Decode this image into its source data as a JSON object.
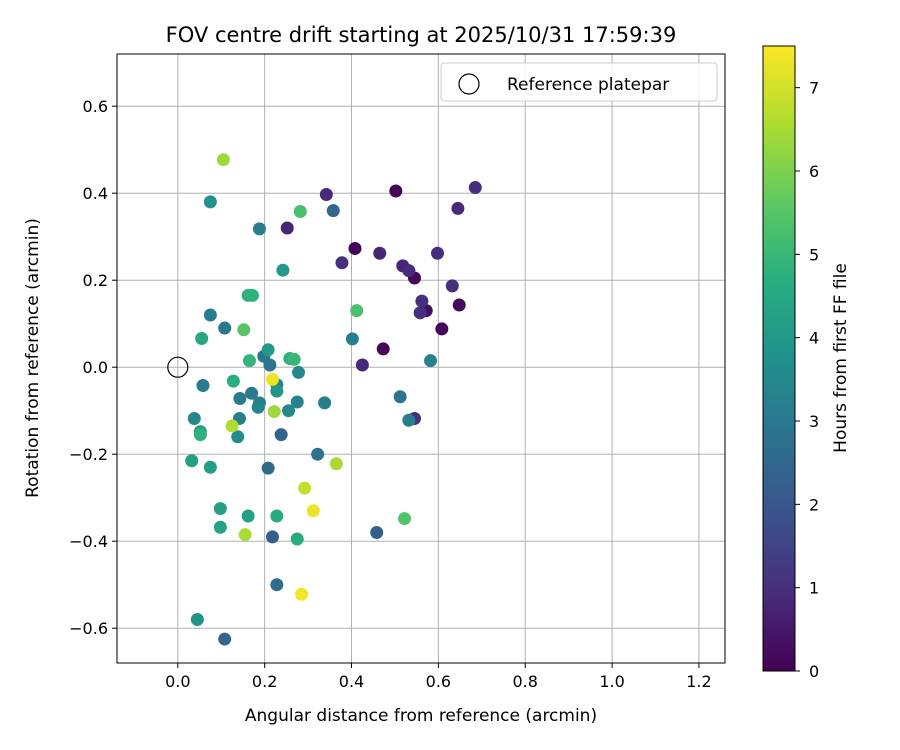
{
  "chart_data": {
    "type": "scatter",
    "title": "FOV centre drift starting at 2025/10/31 17:59:39",
    "xlabel": "Angular distance from reference (arcmin)",
    "ylabel": "Rotation from reference (arcmin)",
    "xlim": [
      -0.14,
      1.26
    ],
    "ylim": [
      -0.68,
      0.72
    ],
    "xticks": [
      0.0,
      0.2,
      0.4,
      0.6,
      0.8,
      1.0,
      1.2
    ],
    "xtick_labels": [
      "0.0",
      "0.2",
      "0.4",
      "0.6",
      "0.8",
      "1.0",
      "1.2"
    ],
    "yticks": [
      -0.6,
      -0.4,
      -0.2,
      0.0,
      0.2,
      0.4,
      0.6
    ],
    "ytick_labels": [
      "−0.6",
      "−0.4",
      "−0.2",
      "0.0",
      "0.2",
      "0.4",
      "0.6"
    ],
    "grid": true,
    "colormap": "viridis",
    "colorbar": {
      "label": "Hours from first FF file",
      "range": [
        0,
        7.5
      ],
      "ticks": [
        0,
        1,
        2,
        3,
        4,
        5,
        6,
        7
      ],
      "tick_labels": [
        "0",
        "1",
        "2",
        "3",
        "4",
        "5",
        "6",
        "7"
      ]
    },
    "legend": {
      "entries": [
        "Reference platepar"
      ],
      "location": "upper right"
    },
    "reference_point": {
      "x": 0.0,
      "y": 0.0,
      "name": "Reference platepar"
    },
    "points": [
      {
        "x": 0.502,
        "y": 0.405,
        "h": 0.05
      },
      {
        "x": 0.408,
        "y": 0.273,
        "h": 0.1
      },
      {
        "x": 0.545,
        "y": 0.205,
        "h": 0.15
      },
      {
        "x": 0.648,
        "y": 0.143,
        "h": 0.2
      },
      {
        "x": 0.608,
        "y": 0.088,
        "h": 0.1
      },
      {
        "x": 0.473,
        "y": 0.042,
        "h": 0.1
      },
      {
        "x": 0.572,
        "y": 0.13,
        "h": 0.3
      },
      {
        "x": 0.685,
        "y": 0.413,
        "h": 1.0
      },
      {
        "x": 0.645,
        "y": 0.365,
        "h": 0.9
      },
      {
        "x": 0.342,
        "y": 0.397,
        "h": 0.9
      },
      {
        "x": 0.252,
        "y": 0.32,
        "h": 0.8
      },
      {
        "x": 0.465,
        "y": 0.262,
        "h": 0.8
      },
      {
        "x": 0.518,
        "y": 0.233,
        "h": 0.8
      },
      {
        "x": 0.598,
        "y": 0.262,
        "h": 1.0
      },
      {
        "x": 0.378,
        "y": 0.24,
        "h": 1.0
      },
      {
        "x": 0.532,
        "y": 0.222,
        "h": 0.9
      },
      {
        "x": 0.632,
        "y": 0.187,
        "h": 1.0
      },
      {
        "x": 0.562,
        "y": 0.152,
        "h": 1.0
      },
      {
        "x": 0.558,
        "y": 0.125,
        "h": 1.0
      },
      {
        "x": 0.425,
        "y": 0.005,
        "h": 0.9
      },
      {
        "x": 0.545,
        "y": -0.118,
        "h": 1.0
      },
      {
        "x": 0.358,
        "y": 0.36,
        "h": 2.5
      },
      {
        "x": 0.458,
        "y": -0.38,
        "h": 2.3
      },
      {
        "x": 0.218,
        "y": -0.39,
        "h": 2.2
      },
      {
        "x": 0.238,
        "y": -0.155,
        "h": 2.4
      },
      {
        "x": 0.208,
        "y": -0.232,
        "h": 2.6
      },
      {
        "x": 0.228,
        "y": -0.5,
        "h": 2.6
      },
      {
        "x": 0.108,
        "y": -0.625,
        "h": 2.5
      },
      {
        "x": 0.322,
        "y": -0.2,
        "h": 2.8
      },
      {
        "x": 0.512,
        "y": -0.068,
        "h": 2.9
      },
      {
        "x": 0.532,
        "y": -0.122,
        "h": 3.2
      },
      {
        "x": 0.582,
        "y": 0.015,
        "h": 3.3
      },
      {
        "x": 0.188,
        "y": 0.318,
        "h": 3.2
      },
      {
        "x": 0.108,
        "y": 0.09,
        "h": 3.0
      },
      {
        "x": 0.075,
        "y": 0.12,
        "h": 3.1
      },
      {
        "x": 0.058,
        "y": -0.042,
        "h": 3.1
      },
      {
        "x": 0.198,
        "y": 0.025,
        "h": 3.0
      },
      {
        "x": 0.212,
        "y": 0.005,
        "h": 2.9
      },
      {
        "x": 0.143,
        "y": -0.072,
        "h": 3.1
      },
      {
        "x": 0.17,
        "y": -0.06,
        "h": 3.0
      },
      {
        "x": 0.188,
        "y": -0.082,
        "h": 3.2
      },
      {
        "x": 0.275,
        "y": -0.08,
        "h": 3.3
      },
      {
        "x": 0.338,
        "y": -0.082,
        "h": 3.2
      },
      {
        "x": 0.402,
        "y": 0.065,
        "h": 3.2
      },
      {
        "x": 0.142,
        "y": -0.118,
        "h": 3.2
      },
      {
        "x": 0.185,
        "y": -0.092,
        "h": 3.4
      },
      {
        "x": 0.228,
        "y": -0.04,
        "h": 3.3
      },
      {
        "x": 0.255,
        "y": -0.1,
        "h": 3.5
      },
      {
        "x": 0.278,
        "y": -0.012,
        "h": 3.5
      },
      {
        "x": 0.138,
        "y": -0.16,
        "h": 3.6
      },
      {
        "x": 0.038,
        "y": -0.118,
        "h": 3.4
      },
      {
        "x": 0.075,
        "y": 0.38,
        "h": 3.8
      },
      {
        "x": 0.045,
        "y": -0.58,
        "h": 3.8
      },
      {
        "x": 0.228,
        "y": -0.055,
        "h": 3.9
      },
      {
        "x": 0.208,
        "y": 0.04,
        "h": 4.0
      },
      {
        "x": 0.242,
        "y": 0.223,
        "h": 4.0
      },
      {
        "x": 0.052,
        "y": -0.148,
        "h": 4.1
      },
      {
        "x": 0.055,
        "y": 0.066,
        "h": 4.5
      },
      {
        "x": 0.032,
        "y": -0.215,
        "h": 4.2
      },
      {
        "x": 0.075,
        "y": -0.23,
        "h": 4.2
      },
      {
        "x": 0.098,
        "y": -0.325,
        "h": 4.2
      },
      {
        "x": 0.098,
        "y": -0.368,
        "h": 4.3
      },
      {
        "x": 0.162,
        "y": -0.342,
        "h": 4.3
      },
      {
        "x": 0.228,
        "y": -0.342,
        "h": 4.6
      },
      {
        "x": 0.275,
        "y": -0.395,
        "h": 4.6
      },
      {
        "x": 0.162,
        "y": 0.165,
        "h": 4.8
      },
      {
        "x": 0.172,
        "y": 0.165,
        "h": 4.8
      },
      {
        "x": 0.258,
        "y": 0.02,
        "h": 4.8
      },
      {
        "x": 0.268,
        "y": 0.018,
        "h": 5.0
      },
      {
        "x": 0.165,
        "y": 0.015,
        "h": 4.9
      },
      {
        "x": 0.128,
        "y": -0.032,
        "h": 4.7
      },
      {
        "x": 0.052,
        "y": -0.155,
        "h": 4.8
      },
      {
        "x": 0.282,
        "y": 0.358,
        "h": 5.3
      },
      {
        "x": 0.412,
        "y": 0.13,
        "h": 5.3
      },
      {
        "x": 0.152,
        "y": 0.086,
        "h": 5.5
      },
      {
        "x": 0.522,
        "y": -0.348,
        "h": 5.4
      },
      {
        "x": 0.105,
        "y": 0.477,
        "h": 6.4
      },
      {
        "x": 0.222,
        "y": -0.102,
        "h": 6.4
      },
      {
        "x": 0.125,
        "y": -0.135,
        "h": 6.6
      },
      {
        "x": 0.155,
        "y": -0.385,
        "h": 6.5
      },
      {
        "x": 0.292,
        "y": -0.278,
        "h": 6.8
      },
      {
        "x": 0.365,
        "y": -0.222,
        "h": 6.5
      },
      {
        "x": 0.218,
        "y": -0.028,
        "h": 7.3
      },
      {
        "x": 0.312,
        "y": -0.33,
        "h": 7.3
      },
      {
        "x": 0.285,
        "y": -0.522,
        "h": 7.4
      }
    ]
  }
}
